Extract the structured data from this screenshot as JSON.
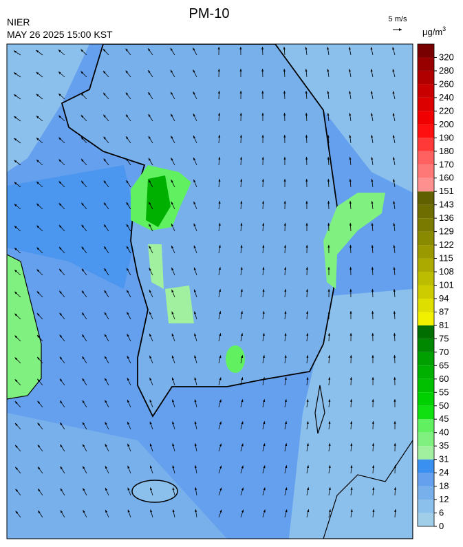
{
  "header": {
    "title": "PM-10",
    "agency": "NIER",
    "timestamp": "MAY 26 2025 15:00 KST"
  },
  "wind_scale": {
    "label": "5 m/s"
  },
  "colorbar": {
    "unit": "μg/m",
    "unit_power": "3",
    "levels": [
      0,
      6,
      12,
      18,
      24,
      31,
      35,
      40,
      45,
      50,
      55,
      60,
      65,
      70,
      75,
      81,
      87,
      94,
      101,
      108,
      115,
      122,
      129,
      136,
      143,
      151,
      160,
      170,
      180,
      190,
      200,
      220,
      240,
      260,
      280,
      320
    ],
    "colors": [
      "#a0cde8",
      "#8cc0ec",
      "#78b0ec",
      "#65a0ee",
      "#3a90f0",
      "#a0f0a0",
      "#80f080",
      "#60f060",
      "#10e010",
      "#00d000",
      "#00c000",
      "#00b000",
      "#00a000",
      "#008800",
      "#006e00",
      "#f0f000",
      "#dede00",
      "#cccc00",
      "#bcbc00",
      "#aaaa00",
      "#9a9a00",
      "#8a8a00",
      "#7a7a00",
      "#6e6e00",
      "#606000",
      "#ff9090",
      "#ff7878",
      "#ff6060",
      "#ff3838",
      "#ff1010",
      "#f00000",
      "#dc0000",
      "#c80000",
      "#b00000",
      "#980000",
      "#780000"
    ]
  }
}
